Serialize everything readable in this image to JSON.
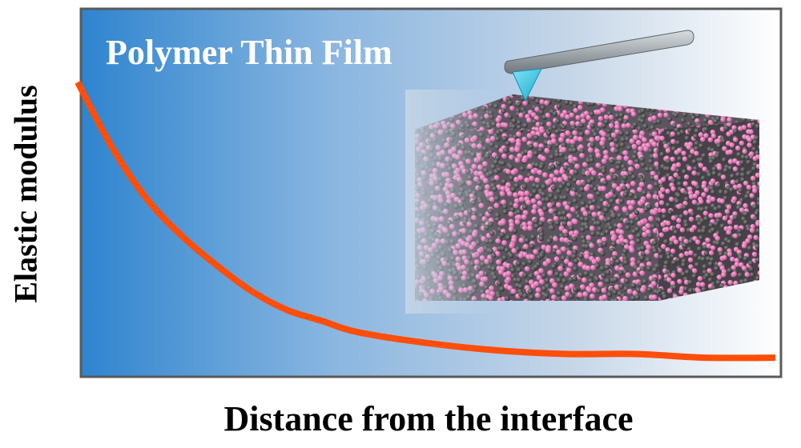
{
  "figure": {
    "panel_title": "Polymer Thin Film",
    "y_axis_label": "Elastic modulus",
    "x_axis_label": "Distance from the interface"
  },
  "chart_data": {
    "type": "line",
    "title": "",
    "xlabel": "Distance from the interface",
    "ylabel": "Elastic modulus",
    "xlim": [
      0,
      1
    ],
    "ylim": [
      0,
      1
    ],
    "grid": false,
    "note_scale": "normalized, axes carry no tick values",
    "series": [
      {
        "x": [
          0.0,
          0.05,
          0.1,
          0.15,
          0.2,
          0.25,
          0.3,
          0.35,
          0.4,
          0.5,
          0.6,
          0.7,
          0.8,
          0.9,
          1.0
        ],
        "y": [
          0.8,
          0.62,
          0.48,
          0.38,
          0.3,
          0.23,
          0.18,
          0.15,
          0.12,
          0.09,
          0.07,
          0.06,
          0.06,
          0.05,
          0.05
        ]
      }
    ]
  },
  "colors": {
    "curve": "#ff4e0a",
    "panel_gradient_left": "#2f86cf",
    "panel_gradient_right": "#ffffff",
    "frame": "#555555",
    "particle_pink": "#e06aae",
    "particle_dark": "#4a4a4a",
    "afm_cantilever": "#9aa2a8",
    "afm_tip": "#36c8e8"
  },
  "illustration": {
    "afm_probe": "afm-cantilever-with-tip",
    "block": "polymer-chain-bead-block"
  }
}
